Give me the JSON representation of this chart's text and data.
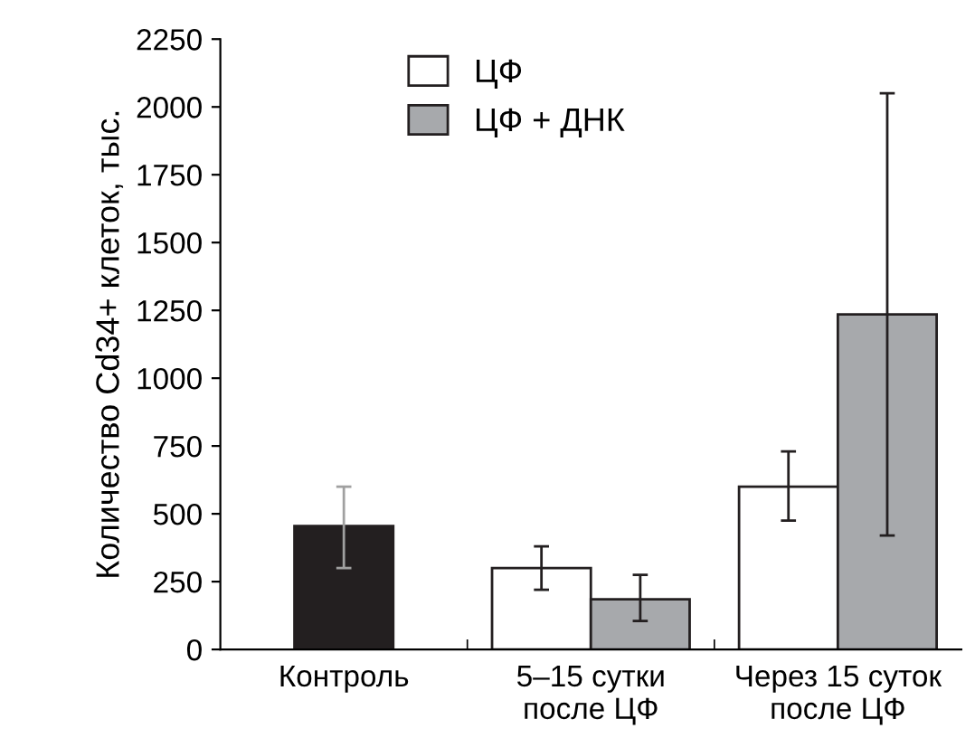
{
  "chart_data": {
    "type": "bar",
    "ylabel": "Количество Cd34+ клеток, тыс.",
    "categories": [
      "Контроль",
      "5–15 сутки\nпосле ЦФ",
      "Через 15 суток\nпосле ЦФ"
    ],
    "series": [
      {
        "color": "#231f20",
        "values": [
          455,
          null,
          null
        ],
        "errors": [
          [
            300,
            600
          ],
          null,
          null
        ]
      },
      {
        "name": "ЦФ",
        "color": "#ffffff",
        "values": [
          null,
          300,
          600
        ],
        "errors": [
          null,
          [
            220,
            380
          ],
          [
            475,
            730
          ]
        ]
      },
      {
        "name": "ЦФ + ДНК",
        "color": "#a7a9ac",
        "values": [
          null,
          185,
          1235
        ],
        "errors": [
          null,
          [
            105,
            275
          ],
          [
            420,
            2050
          ]
        ]
      }
    ],
    "ylim": [
      0,
      2250
    ],
    "yticks": [
      0,
      250,
      500,
      750,
      1000,
      1250,
      1500,
      1750,
      2000,
      2250
    ],
    "legend": "top",
    "grid": false
  }
}
